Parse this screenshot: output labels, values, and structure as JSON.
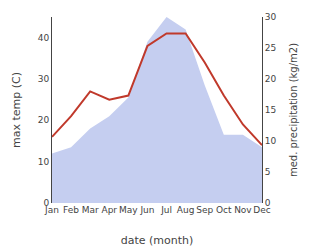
{
  "chart_data": {
    "type": "line",
    "categories": [
      "Jan",
      "Feb",
      "Mar",
      "Apr",
      "May",
      "Jun",
      "Jul",
      "Aug",
      "Sep",
      "Oct",
      "Nov",
      "Dec"
    ],
    "series": [
      {
        "type": "area",
        "color": "#c5cef0",
        "axis": "y2",
        "values": [
          8,
          9,
          12,
          14,
          17,
          26,
          30,
          28,
          19,
          11,
          11,
          9
        ]
      },
      {
        "type": "line",
        "color": "#c0392b",
        "values": [
          16,
          21,
          27,
          25,
          26,
          38,
          41,
          41,
          34,
          26,
          19,
          14
        ]
      }
    ],
    "xlabel": "date (month)",
    "ylabel": "max temp (C)",
    "y2label": "med. precipitation (kg/m2)",
    "ylim": [
      0,
      45
    ],
    "yticks": [
      0,
      10,
      20,
      30,
      40
    ],
    "y2lim": [
      0,
      30
    ],
    "y2ticks": [
      0,
      5,
      10,
      15,
      20,
      25,
      30
    ],
    "grid": false
  }
}
